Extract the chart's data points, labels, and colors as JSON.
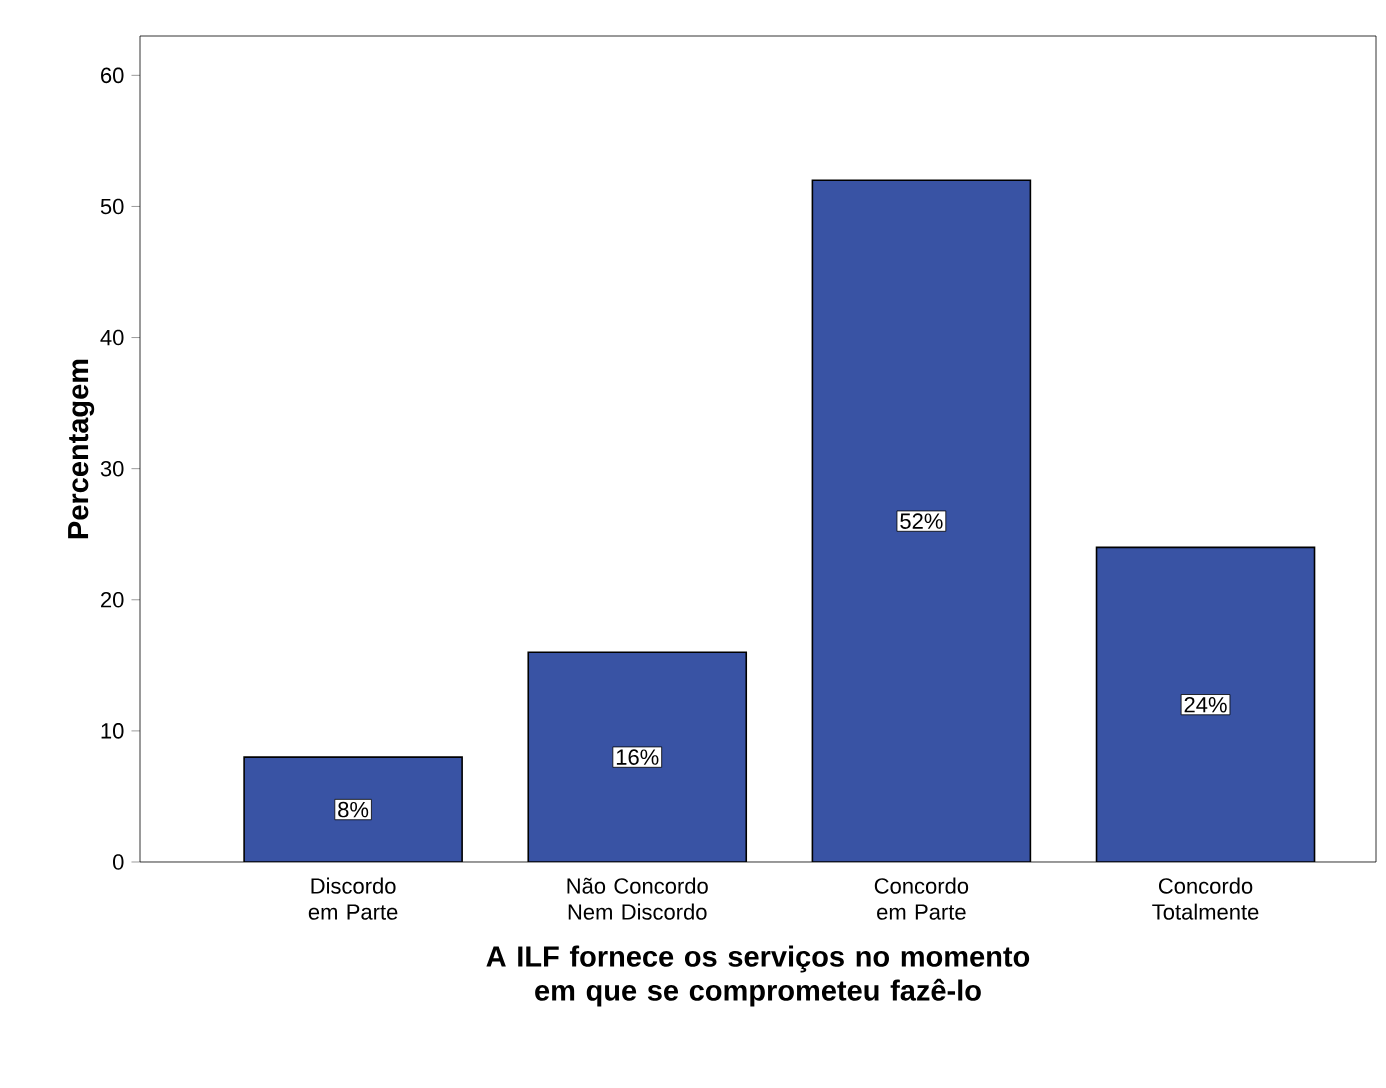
{
  "chart_data": {
    "type": "bar",
    "xlabel": "A ILF fornece os serviços no momento em que se comprometeu fazê-lo",
    "ylabel": "Percentagem",
    "categories": [
      "Discordo em Parte",
      "Não Concordo Nem Discordo",
      "Concordo em Parte",
      "Concordo Totalmente"
    ],
    "values": [
      8,
      16,
      52,
      24
    ],
    "value_labels": [
      "8%",
      "16%",
      "52%",
      "24%"
    ],
    "color": "#3953a4",
    "ylim": [
      0,
      63
    ],
    "yticks": [
      0,
      10,
      20,
      30,
      40,
      50,
      60
    ]
  }
}
